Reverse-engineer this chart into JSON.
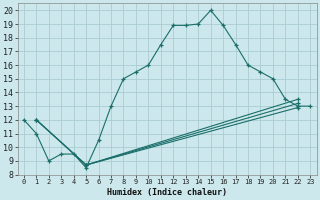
{
  "xlabel": "Humidex (Indice chaleur)",
  "bg_color": "#cce8ec",
  "grid_color": "#aaccd0",
  "line_color": "#1a6e6a",
  "xlim": [
    -0.5,
    23.5
  ],
  "ylim": [
    8,
    20.5
  ],
  "xticks": [
    0,
    1,
    2,
    3,
    4,
    5,
    6,
    7,
    8,
    9,
    10,
    11,
    12,
    13,
    14,
    15,
    16,
    17,
    18,
    19,
    20,
    21,
    22,
    23
  ],
  "yticks": [
    8,
    9,
    10,
    11,
    12,
    13,
    14,
    15,
    16,
    17,
    18,
    19,
    20
  ],
  "series1": [
    [
      0,
      12
    ],
    [
      1,
      11
    ],
    [
      2,
      9
    ],
    [
      3,
      9.5
    ],
    [
      4,
      9.5
    ],
    [
      5,
      8.5
    ],
    [
      6,
      10.5
    ],
    [
      7,
      13
    ],
    [
      8,
      15
    ],
    [
      9,
      15.5
    ],
    [
      10,
      16
    ],
    [
      11,
      17.5
    ],
    [
      12,
      18.9
    ],
    [
      13,
      18.9
    ],
    [
      14,
      19.0
    ],
    [
      15,
      20.0
    ],
    [
      16,
      18.9
    ],
    [
      17,
      17.5
    ],
    [
      18,
      16.0
    ],
    [
      19,
      15.5
    ],
    [
      20,
      15.0
    ],
    [
      21,
      13.5
    ],
    [
      22,
      13.0
    ],
    [
      23,
      13.0
    ]
  ],
  "series2": [
    [
      1,
      12
    ],
    [
      5,
      8.7
    ],
    [
      22,
      13.5
    ]
  ],
  "series3": [
    [
      1,
      12
    ],
    [
      5,
      8.7
    ],
    [
      22,
      12.9
    ]
  ],
  "series4": [
    [
      1,
      12
    ],
    [
      5,
      8.7
    ],
    [
      22,
      13.2
    ]
  ]
}
